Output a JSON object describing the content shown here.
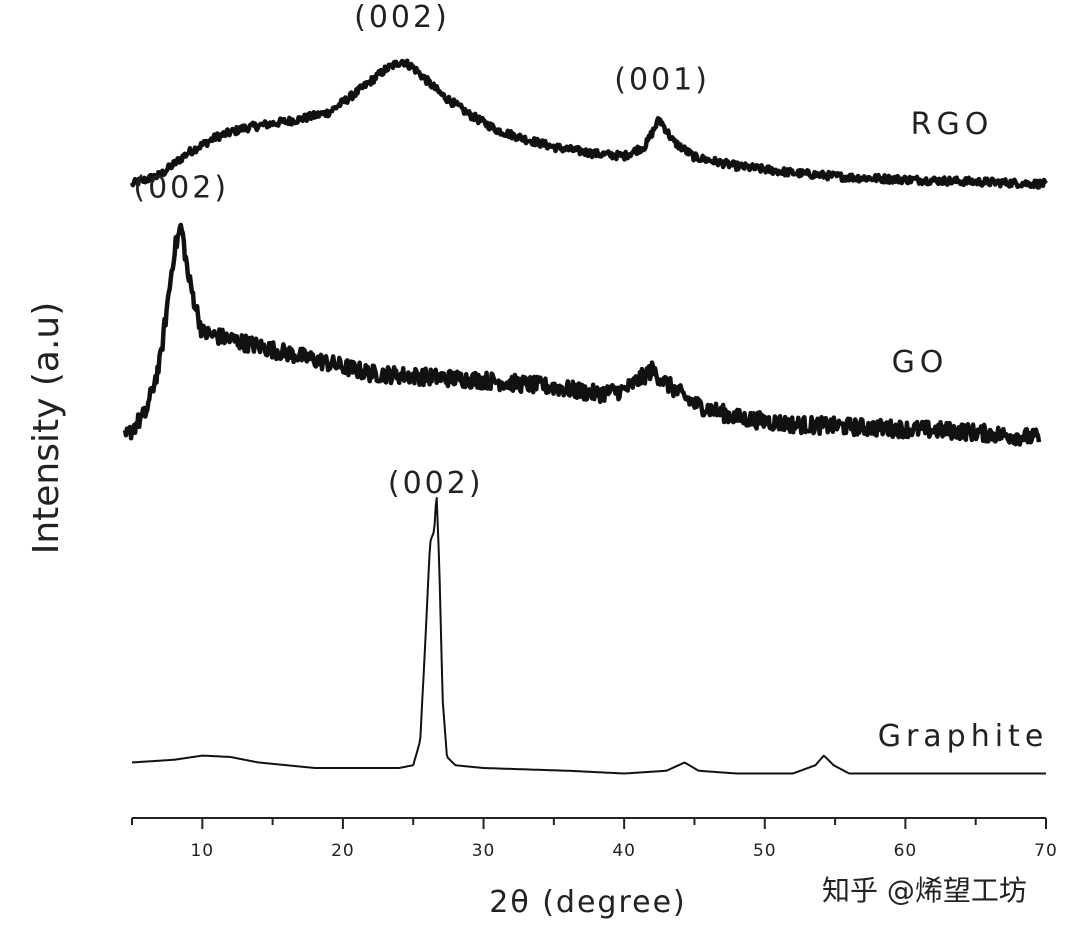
{
  "chart_data": {
    "type": "line",
    "title": "",
    "xlabel": "2θ (degree)",
    "ylabel": "Intensity (a.u)",
    "xlim": [
      5,
      70
    ],
    "xticks": [
      "10",
      "20",
      "30",
      "40",
      "50",
      "60",
      "70"
    ],
    "grid": false,
    "legend": "none",
    "series": [
      {
        "name": "RGO",
        "noise": 0.035,
        "points": [
          [
            5,
            0.0
          ],
          [
            7,
            0.08
          ],
          [
            9,
            0.28
          ],
          [
            11,
            0.42
          ],
          [
            13,
            0.5
          ],
          [
            15,
            0.54
          ],
          [
            17,
            0.58
          ],
          [
            19,
            0.64
          ],
          [
            21,
            0.82
          ],
          [
            23,
            1.02
          ],
          [
            24.2,
            1.1
          ],
          [
            25,
            1.04
          ],
          [
            27,
            0.8
          ],
          [
            29,
            0.62
          ],
          [
            31,
            0.48
          ],
          [
            33,
            0.4
          ],
          [
            35,
            0.33
          ],
          [
            38,
            0.27
          ],
          [
            40,
            0.25
          ],
          [
            41.5,
            0.34
          ],
          [
            42.5,
            0.58
          ],
          [
            43.5,
            0.38
          ],
          [
            45,
            0.24
          ],
          [
            48,
            0.16
          ],
          [
            52,
            0.1
          ],
          [
            56,
            0.06
          ],
          [
            60,
            0.04
          ],
          [
            65,
            0.02
          ],
          [
            70,
            0.0
          ]
        ]
      },
      {
        "name": "GO",
        "noise": 0.05,
        "points": [
          [
            4.5,
            0.0
          ],
          [
            6,
            0.15
          ],
          [
            7,
            0.45
          ],
          [
            8,
            1.1
          ],
          [
            8.5,
            1.25
          ],
          [
            9,
            0.95
          ],
          [
            10,
            0.62
          ],
          [
            12,
            0.58
          ],
          [
            15,
            0.52
          ],
          [
            18,
            0.46
          ],
          [
            22,
            0.38
          ],
          [
            26,
            0.36
          ],
          [
            30,
            0.34
          ],
          [
            35,
            0.3
          ],
          [
            38,
            0.26
          ],
          [
            40,
            0.28
          ],
          [
            42,
            0.4
          ],
          [
            43,
            0.32
          ],
          [
            45,
            0.2
          ],
          [
            48,
            0.12
          ],
          [
            52,
            0.08
          ],
          [
            58,
            0.06
          ],
          [
            64,
            0.04
          ],
          [
            69.5,
            0.0
          ]
        ]
      },
      {
        "name": "Graphite",
        "noise": 0.0,
        "points": [
          [
            5,
            0.02
          ],
          [
            8,
            0.03
          ],
          [
            10,
            0.045
          ],
          [
            12,
            0.04
          ],
          [
            14,
            0.02
          ],
          [
            18,
            0.0
          ],
          [
            22,
            0.0
          ],
          [
            24,
            0.0
          ],
          [
            25,
            0.01
          ],
          [
            25.5,
            0.1
          ],
          [
            25.9,
            0.5
          ],
          [
            26.2,
            0.82
          ],
          [
            26.5,
            0.86
          ],
          [
            26.65,
            1.0
          ],
          [
            26.85,
            0.74
          ],
          [
            27.1,
            0.24
          ],
          [
            27.4,
            0.04
          ],
          [
            28,
            0.01
          ],
          [
            30,
            0.0
          ],
          [
            36,
            -0.01
          ],
          [
            40,
            -0.02
          ],
          [
            43,
            -0.01
          ],
          [
            44.3,
            0.02
          ],
          [
            45.3,
            -0.01
          ],
          [
            48,
            -0.02
          ],
          [
            52,
            -0.02
          ],
          [
            53.6,
            0.01
          ],
          [
            54.2,
            0.045
          ],
          [
            54.9,
            0.01
          ],
          [
            56,
            -0.02
          ],
          [
            60,
            -0.02
          ],
          [
            65,
            -0.02
          ],
          [
            70,
            -0.02
          ]
        ]
      }
    ],
    "series_labels": [
      "RGO",
      "GO",
      "Graphite"
    ],
    "annotations": [
      {
        "text": "(002)",
        "series": "RGO",
        "x": 24.2
      },
      {
        "text": "(001)",
        "series": "RGO",
        "x": 42.7
      },
      {
        "text": "(002)",
        "series": "GO",
        "x": 8.5
      },
      {
        "text": "(002)",
        "series": "Graphite",
        "x": 26.6
      }
    ]
  },
  "watermark": "知乎 @烯望工坊"
}
